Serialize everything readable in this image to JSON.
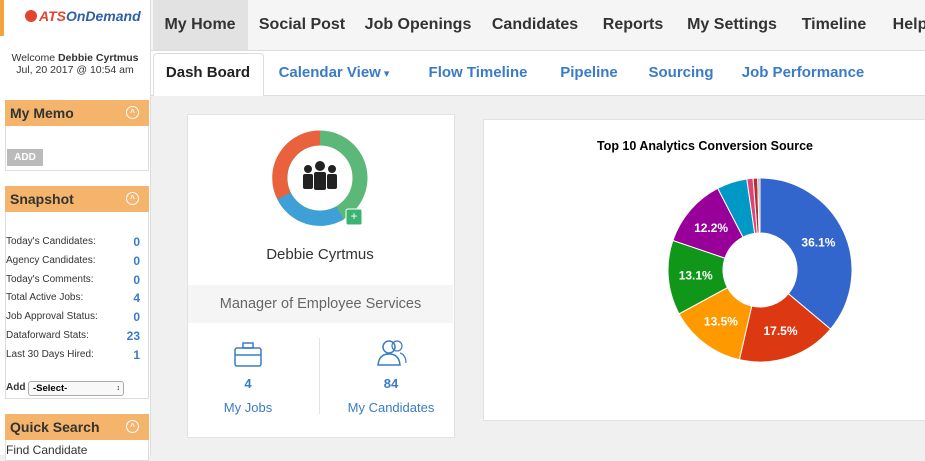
{
  "logo": {
    "brand": "ATS",
    "brand2": "OnDemand"
  },
  "welcome": {
    "greeting": "Welcome",
    "name": "Debbie Cyrtmus",
    "date": "Jul, 20 2017 @ 10:54 am"
  },
  "nav": [
    "My Home",
    "Social Post",
    "Job Openings",
    "Candidates",
    "Reports",
    "My Settings",
    "Timeline",
    "Help"
  ],
  "subnav": [
    "Dash Board",
    "Calendar View",
    "Flow Timeline",
    "Pipeline",
    "Sourcing",
    "Job Performance"
  ],
  "sidebar": {
    "memo": {
      "title": "My Memo",
      "button": "ADD"
    },
    "snapshot": {
      "title": "Snapshot",
      "items": [
        {
          "label": "Today's Candidates:",
          "value": 0
        },
        {
          "label": "Agency Candidates:",
          "value": 0
        },
        {
          "label": "Today's Comments:",
          "value": 0
        },
        {
          "label": "Total Active Jobs:",
          "value": 4
        },
        {
          "label": "Job Approval Status:",
          "value": 0
        },
        {
          "label": "Dataforward Stats:",
          "value": 23
        },
        {
          "label": "Last 30 Days Hired:",
          "value": 1
        }
      ],
      "add_label": "Add",
      "select": "-Select-"
    },
    "quick_search": {
      "title": "Quick Search",
      "item": "Find Candidate"
    }
  },
  "profile": {
    "name": "Debbie Cyrtmus",
    "role": "Manager of Employee Services",
    "stats": [
      {
        "value": 4,
        "label": "My Jobs"
      },
      {
        "value": 84,
        "label": "My Candidates"
      }
    ]
  },
  "chart_data": {
    "type": "pie",
    "title": "Top 10 Analytics Conversion Source",
    "values": [
      36.1,
      17.5,
      13.5,
      13.1,
      12.2,
      5.3,
      1.1,
      0.8,
      0.4
    ],
    "value_labels": [
      "36.1%",
      "17.5%",
      "13.5%",
      "13.1%",
      "12.2%",
      null,
      null,
      null,
      null
    ],
    "colors": [
      "#3366cc",
      "#dc3912",
      "#ff9900",
      "#109618",
      "#990099",
      "#0099c6",
      "#dd4477",
      "#b82e2e",
      "#aaaaaa"
    ]
  }
}
